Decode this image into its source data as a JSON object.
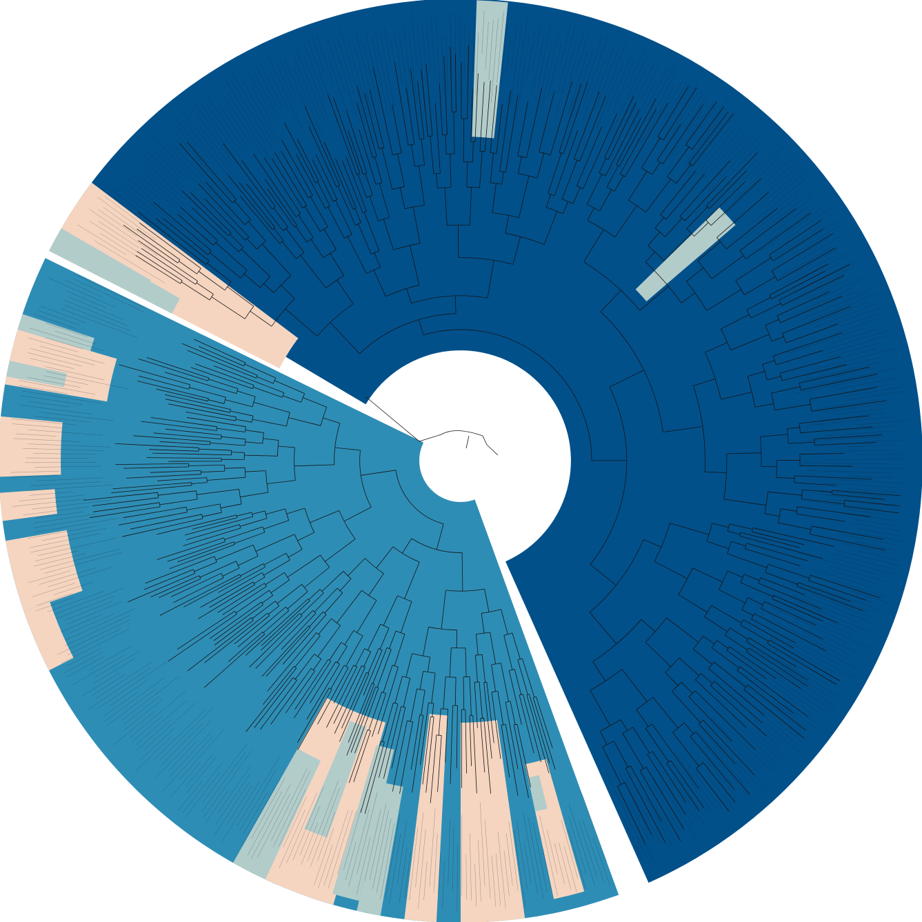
{
  "diagram": {
    "type": "circular-phylogenetic-tree",
    "labels_legible": false,
    "colors": {
      "dark_clade": "#02508a",
      "mid_clade": "#2e8db5",
      "peach": "#f5d5c0",
      "sage": "#b2ccca",
      "background": "#ffffff",
      "branch": "#141414"
    },
    "sectors": [
      {
        "clade": "dark_clade",
        "start": -59.3,
        "end": 156.0,
        "inner": 160,
        "outer": 670
      },
      {
        "clade": "sage",
        "start": 2.0,
        "end": 5.9,
        "inner": 470,
        "outer": 668
      },
      {
        "clade": "sage",
        "start": 45.6,
        "end": 49.4,
        "inner": 355,
        "outer": 525
      },
      {
        "clade": "mid_clade",
        "start": 160.0,
        "end": 296.0,
        "inner": 60,
        "outer": 670
      },
      {
        "clade": "peach",
        "start": 196.0,
        "end": 209.5,
        "inner": 395,
        "outer": 670
      },
      {
        "clade": "sage",
        "start": 205.0,
        "end": 209.5,
        "inner": 480,
        "outer": 670
      },
      {
        "clade": "sage",
        "start": 193.0,
        "end": 196.5,
        "inner": 430,
        "outer": 655
      },
      {
        "clade": "peach",
        "start": 164.0,
        "end": 168.0,
        "inner": 450,
        "outer": 650
      },
      {
        "clade": "sage",
        "start": 166.0,
        "end": 168.0,
        "inner": 470,
        "outer": 520
      },
      {
        "clade": "peach",
        "start": 172.0,
        "end": 180.0,
        "inner": 380,
        "outer": 670
      },
      {
        "clade": "peach",
        "start": 183.0,
        "end": 187.0,
        "inner": 370,
        "outer": 670
      },
      {
        "clade": "sage",
        "start": 190.0,
        "end": 193.0,
        "inner": 480,
        "outer": 670
      },
      {
        "clade": "sage",
        "start": 199.5,
        "end": 203.0,
        "inner": 410,
        "outer": 580
      },
      {
        "clade": "peach",
        "start": 243.0,
        "end": 251.0,
        "inner": 630,
        "outer": 670
      },
      {
        "clade": "peach",
        "start": 251.0,
        "end": 260.0,
        "inner": 580,
        "outer": 670
      },
      {
        "clade": "peach",
        "start": 262.5,
        "end": 266.0,
        "inner": 590,
        "outer": 670
      },
      {
        "clade": "peach",
        "start": 268.0,
        "end": 275.5,
        "inner": 580,
        "outer": 670
      },
      {
        "clade": "peach",
        "start": 279.5,
        "end": 286.5,
        "inner": 520,
        "outer": 670
      },
      {
        "clade": "sage",
        "start": 280.5,
        "end": 282.5,
        "inner": 585,
        "outer": 670
      },
      {
        "clade": "sage",
        "start": 286.5,
        "end": 288.5,
        "inner": 560,
        "outer": 670
      },
      {
        "clade": "peach",
        "start": 297.0,
        "end": 307.0,
        "inner": 295,
        "outer": 670
      },
      {
        "clade": "sage",
        "start": 297.0,
        "end": 300.0,
        "inner": 470,
        "outer": 670
      },
      {
        "clade": "sage",
        "start": 299.0,
        "end": 300.2,
        "inner": 520,
        "outer": 670
      }
    ]
  }
}
